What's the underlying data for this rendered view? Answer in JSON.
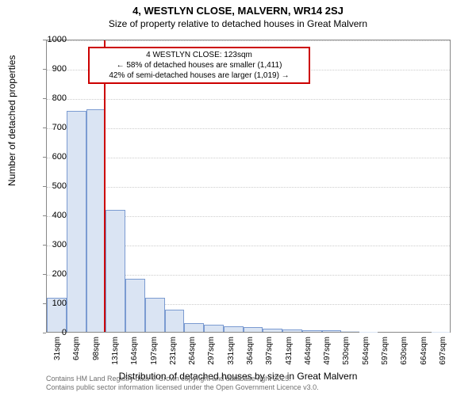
{
  "titles": {
    "main": "4, WESTLYN CLOSE, MALVERN, WR14 2SJ",
    "sub": "Size of property relative to detached houses in Great Malvern"
  },
  "axes": {
    "y_label": "Number of detached properties",
    "x_label": "Distribution of detached houses by size in Great Malvern"
  },
  "chart": {
    "type": "histogram",
    "ylim": [
      0,
      1000
    ],
    "ytick_step": 100,
    "yticks": [
      0,
      100,
      200,
      300,
      400,
      500,
      600,
      700,
      800,
      900,
      1000
    ],
    "x_categories": [
      "31sqm",
      "64sqm",
      "98sqm",
      "131sqm",
      "164sqm",
      "197sqm",
      "231sqm",
      "264sqm",
      "297sqm",
      "331sqm",
      "364sqm",
      "397sqm",
      "431sqm",
      "464sqm",
      "497sqm",
      "530sqm",
      "564sqm",
      "597sqm",
      "630sqm",
      "664sqm",
      "697sqm"
    ],
    "bar_values": [
      115,
      755,
      760,
      415,
      180,
      115,
      75,
      30,
      25,
      20,
      15,
      10,
      8,
      5,
      5,
      2,
      1,
      0,
      0,
      0,
      1
    ],
    "bar_fill": "#dae4f3",
    "bar_border": "#7b9bd1",
    "grid_color": "#cccccc",
    "axis_color": "#888888",
    "background_color": "#ffffff"
  },
  "reference": {
    "position_category_index": 3,
    "line_color": "#cc0000"
  },
  "annotation": {
    "line1": "4 WESTLYN CLOSE: 123sqm",
    "line2": "← 58% of detached houses are smaller (1,411)",
    "line3": "42% of semi-detached houses are larger (1,019) →",
    "border_color": "#cc0000",
    "background": "#ffffff"
  },
  "footer": {
    "line1": "Contains HM Land Registry data © Crown copyright and database right 2025.",
    "line2": "Contains public sector information licensed under the Open Government Licence v3.0."
  }
}
